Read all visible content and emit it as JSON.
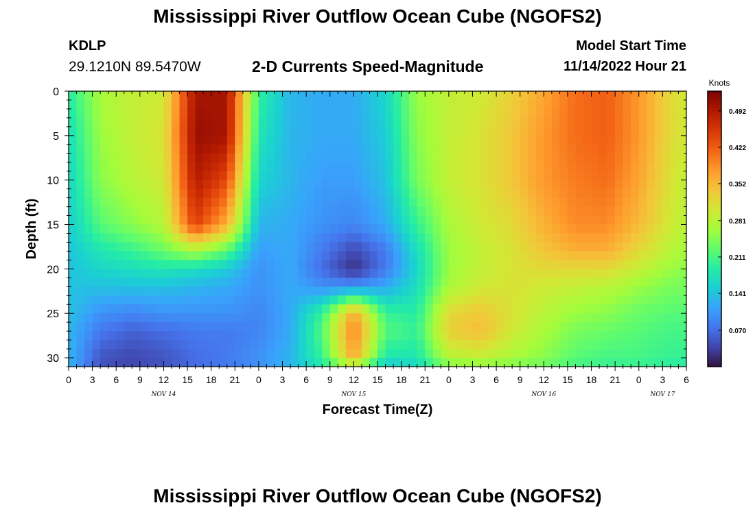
{
  "header": {
    "title": "Mississippi River Outflow Ocean Cube (NGOFS2)",
    "station_id": "KDLP",
    "station_coords": "29.1210N  89.5470W",
    "subtitle": "2-D Currents Speed-Magnitude",
    "model_start_label": "Model Start Time",
    "model_start_value": "11/14/2022 Hour 21"
  },
  "footer": {
    "title": "Mississippi River Outflow Ocean Cube (NGOFS2)"
  },
  "chart_data": {
    "type": "heatmap",
    "xlabel": "Forecast Time(Z)",
    "ylabel": "Depth (ft)",
    "x_range_hours": [
      0,
      78
    ],
    "x_tick_labels": [
      "0",
      "3",
      "6",
      "9",
      "12",
      "15",
      "18",
      "21",
      "0",
      "3",
      "6",
      "9",
      "12",
      "15",
      "18",
      "21",
      "0",
      "3",
      "6",
      "9",
      "12",
      "15",
      "18",
      "21",
      "0",
      "3",
      "6"
    ],
    "date_labels": [
      {
        "label": "NOV 14",
        "hour": 12
      },
      {
        "label": "NOV 15",
        "hour": 36
      },
      {
        "label": "NOV 16",
        "hour": 60
      },
      {
        "label": "NOV 17",
        "hour": 75
      }
    ],
    "ylim": [
      0,
      31
    ],
    "y_ticks": [
      0,
      5,
      10,
      15,
      20,
      25,
      30
    ],
    "y_reversed": true,
    "colorbar": {
      "unit": "Knots",
      "min": 0.0,
      "max": 0.53,
      "ticks": [
        "0.070",
        "0.141",
        "0.211",
        "0.281",
        "0.352",
        "0.422",
        "0.492"
      ],
      "tick_values": [
        0.07,
        0.141,
        0.211,
        0.281,
        0.352,
        0.422,
        0.492
      ],
      "colormap": [
        "#30123b",
        "#4145ab",
        "#4675ed",
        "#39a2fc",
        "#1bcfd4",
        "#24eca6",
        "#61fc6c",
        "#a4fc3b",
        "#d1e834",
        "#f3c63a",
        "#fe9b2d",
        "#f36315",
        "#d93806",
        "#b11901",
        "#7a0403"
      ]
    },
    "z_grid": {
      "hours": [
        0,
        4,
        8,
        12,
        16,
        20,
        24,
        28,
        32,
        36,
        40,
        44,
        48,
        52,
        56,
        60,
        64,
        68,
        72,
        76,
        78
      ],
      "depths_ft": [
        0,
        5,
        10,
        15,
        18,
        20,
        22,
        25,
        27,
        30,
        31
      ],
      "values_knots": [
        [
          0.19,
          0.17,
          0.16,
          0.15,
          0.14,
          0.14,
          0.14,
          0.14,
          0.13,
          0.13,
          0.13
        ],
        [
          0.27,
          0.26,
          0.25,
          0.22,
          0.18,
          0.16,
          0.14,
          0.1,
          0.08,
          0.05,
          0.05
        ],
        [
          0.29,
          0.29,
          0.28,
          0.25,
          0.2,
          0.17,
          0.14,
          0.09,
          0.06,
          0.04,
          0.04
        ],
        [
          0.3,
          0.31,
          0.3,
          0.28,
          0.23,
          0.18,
          0.14,
          0.1,
          0.07,
          0.05,
          0.05
        ],
        [
          0.5,
          0.51,
          0.49,
          0.45,
          0.27,
          0.17,
          0.13,
          0.1,
          0.08,
          0.07,
          0.07
        ],
        [
          0.5,
          0.5,
          0.44,
          0.36,
          0.22,
          0.15,
          0.12,
          0.1,
          0.08,
          0.08,
          0.08
        ],
        [
          0.2,
          0.18,
          0.16,
          0.13,
          0.11,
          0.1,
          0.1,
          0.09,
          0.09,
          0.1,
          0.1
        ],
        [
          0.13,
          0.13,
          0.13,
          0.12,
          0.12,
          0.12,
          0.12,
          0.12,
          0.12,
          0.13,
          0.13
        ],
        [
          0.12,
          0.12,
          0.11,
          0.1,
          0.08,
          0.07,
          0.1,
          0.2,
          0.22,
          0.2,
          0.18
        ],
        [
          0.12,
          0.12,
          0.11,
          0.09,
          0.04,
          0.02,
          0.1,
          0.37,
          0.4,
          0.37,
          0.25
        ],
        [
          0.16,
          0.15,
          0.14,
          0.12,
          0.08,
          0.08,
          0.12,
          0.2,
          0.22,
          0.18,
          0.14
        ],
        [
          0.26,
          0.25,
          0.24,
          0.2,
          0.17,
          0.16,
          0.17,
          0.19,
          0.2,
          0.18,
          0.16
        ],
        [
          0.29,
          0.29,
          0.29,
          0.27,
          0.26,
          0.26,
          0.27,
          0.32,
          0.33,
          0.28,
          0.24
        ],
        [
          0.3,
          0.31,
          0.31,
          0.3,
          0.29,
          0.29,
          0.3,
          0.34,
          0.35,
          0.29,
          0.24
        ],
        [
          0.33,
          0.34,
          0.34,
          0.32,
          0.31,
          0.31,
          0.31,
          0.31,
          0.3,
          0.27,
          0.24
        ],
        [
          0.37,
          0.38,
          0.38,
          0.36,
          0.34,
          0.32,
          0.3,
          0.28,
          0.27,
          0.25,
          0.23
        ],
        [
          0.41,
          0.41,
          0.4,
          0.39,
          0.36,
          0.32,
          0.29,
          0.26,
          0.24,
          0.22,
          0.21
        ],
        [
          0.42,
          0.42,
          0.41,
          0.39,
          0.36,
          0.32,
          0.28,
          0.25,
          0.23,
          0.21,
          0.2
        ],
        [
          0.38,
          0.38,
          0.37,
          0.35,
          0.32,
          0.29,
          0.26,
          0.23,
          0.22,
          0.21,
          0.2
        ],
        [
          0.32,
          0.32,
          0.31,
          0.3,
          0.28,
          0.26,
          0.24,
          0.22,
          0.21,
          0.2,
          0.19
        ],
        [
          0.3,
          0.3,
          0.29,
          0.28,
          0.27,
          0.25,
          0.24,
          0.22,
          0.21,
          0.2,
          0.19
        ]
      ]
    }
  }
}
